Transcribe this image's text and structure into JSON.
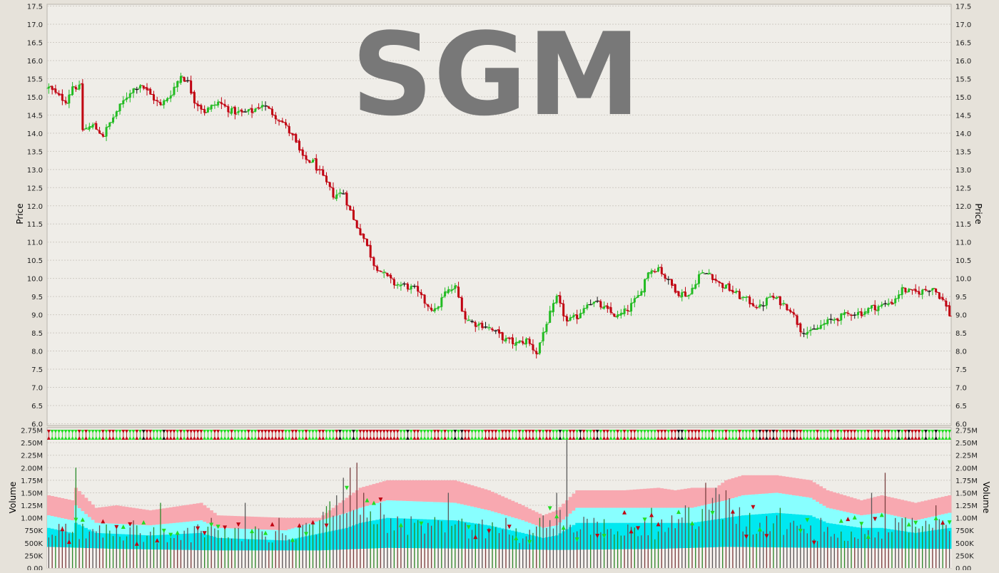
{
  "watermark": "SGM",
  "colors": {
    "up": "#22bb22",
    "down": "#c00010",
    "neutral": "#111111",
    "plot_bg": "#efede8",
    "band_outer": "#f8a8b0",
    "band_mid": "#88ffff",
    "band_inner": "#00e8f0",
    "vol_base": "#e88a90",
    "watermark": "#787878"
  },
  "chart_data": [
    {
      "type": "ohlc",
      "name": "price",
      "ylabel": "Price",
      "ylim": [
        5.95,
        17.55
      ],
      "ticks": [
        "6.0",
        "6.5",
        "7.0",
        "7.5",
        "8.0",
        "8.5",
        "9.0",
        "9.5",
        "10.0",
        "10.5",
        "11.0",
        "11.5",
        "12.0",
        "12.5",
        "13.0",
        "13.5",
        "14.0",
        "14.5",
        "15.0",
        "15.5",
        "16.0",
        "16.5",
        "17.0",
        "17.5"
      ],
      "grid": true,
      "anchors": [
        [
          0,
          15.25
        ],
        [
          3,
          15.0
        ],
        [
          5,
          14.9
        ],
        [
          7,
          15.3
        ],
        [
          9,
          15.25
        ],
        [
          10,
          14.1
        ],
        [
          13,
          14.2
        ],
        [
          16,
          13.95
        ],
        [
          20,
          14.6
        ],
        [
          24,
          15.15
        ],
        [
          27,
          15.35
        ],
        [
          30,
          15.05
        ],
        [
          33,
          14.75
        ],
        [
          36,
          15.1
        ],
        [
          39,
          15.6
        ],
        [
          41,
          15.4
        ],
        [
          43,
          14.9
        ],
        [
          46,
          14.6
        ],
        [
          50,
          14.85
        ],
        [
          54,
          14.6
        ],
        [
          57,
          14.55
        ],
        [
          60,
          14.6
        ],
        [
          63,
          14.8
        ],
        [
          66,
          14.55
        ],
        [
          69,
          14.3
        ],
        [
          72,
          13.9
        ],
        [
          75,
          13.3
        ],
        [
          78,
          13.2
        ],
        [
          81,
          12.75
        ],
        [
          84,
          12.3
        ],
        [
          87,
          12.35
        ],
        [
          90,
          11.6
        ],
        [
          93,
          11.1
        ],
        [
          96,
          10.4
        ],
        [
          99,
          10.1
        ],
        [
          102,
          9.85
        ],
        [
          105,
          9.8
        ],
        [
          108,
          9.7
        ],
        [
          111,
          9.35
        ],
        [
          114,
          9.1
        ],
        [
          117,
          9.6
        ],
        [
          120,
          9.75
        ],
        [
          123,
          8.9
        ],
        [
          126,
          8.75
        ],
        [
          129,
          8.7
        ],
        [
          132,
          8.5
        ],
        [
          135,
          8.3
        ],
        [
          138,
          8.2
        ],
        [
          141,
          8.3
        ],
        [
          144,
          7.95
        ],
        [
          147,
          8.8
        ],
        [
          150,
          9.45
        ],
        [
          153,
          8.8
        ],
        [
          156,
          8.95
        ],
        [
          159,
          9.35
        ],
        [
          162,
          9.3
        ],
        [
          165,
          9.1
        ],
        [
          168,
          8.95
        ],
        [
          171,
          9.15
        ],
        [
          174,
          9.5
        ],
        [
          177,
          10.2
        ],
        [
          180,
          10.3
        ],
        [
          183,
          9.9
        ],
        [
          186,
          9.6
        ],
        [
          189,
          9.55
        ],
        [
          192,
          10.1
        ],
        [
          195,
          10.15
        ],
        [
          198,
          9.85
        ],
        [
          201,
          9.7
        ],
        [
          204,
          9.5
        ],
        [
          207,
          9.35
        ],
        [
          210,
          9.2
        ],
        [
          213,
          9.5
        ],
        [
          216,
          9.35
        ],
        [
          219,
          9.15
        ],
        [
          222,
          8.6
        ],
        [
          225,
          8.5
        ],
        [
          228,
          8.7
        ],
        [
          231,
          8.85
        ],
        [
          234,
          8.95
        ],
        [
          237,
          9.05
        ],
        [
          240,
          9.05
        ],
        [
          243,
          9.2
        ],
        [
          246,
          9.25
        ],
        [
          249,
          9.35
        ],
        [
          252,
          9.7
        ],
        [
          255,
          9.6
        ],
        [
          258,
          9.65
        ],
        [
          261,
          9.75
        ],
        [
          264,
          9.4
        ],
        [
          266,
          9.0
        ]
      ]
    },
    {
      "type": "bar",
      "name": "volume",
      "ylabel": "Volume",
      "ylim": [
        0,
        2.8
      ],
      "ticks": [
        "0.00",
        "250K",
        "500K",
        "750K",
        "1.00M",
        "1.25M",
        "1.50M",
        "1.75M",
        "2.00M",
        "2.25M",
        "2.50M",
        "2.75M"
      ],
      "grid": true,
      "anchors": [
        [
          0,
          0.75
        ],
        [
          10,
          0.8
        ],
        [
          30,
          0.7
        ],
        [
          50,
          0.75
        ],
        [
          70,
          0.7
        ],
        [
          80,
          0.85
        ],
        [
          85,
          1.3
        ],
        [
          90,
          1.55
        ],
        [
          95,
          1.2
        ],
        [
          100,
          0.95
        ],
        [
          110,
          0.9
        ],
        [
          120,
          0.85
        ],
        [
          130,
          0.8
        ],
        [
          140,
          0.7
        ],
        [
          150,
          1.0
        ],
        [
          160,
          0.85
        ],
        [
          170,
          0.9
        ],
        [
          180,
          0.8
        ],
        [
          190,
          1.05
        ],
        [
          196,
          1.3
        ],
        [
          200,
          1.35
        ],
        [
          205,
          0.95
        ],
        [
          210,
          0.95
        ],
        [
          220,
          0.85
        ],
        [
          230,
          0.7
        ],
        [
          240,
          0.8
        ],
        [
          250,
          0.85
        ],
        [
          260,
          0.85
        ],
        [
          266,
          0.9
        ]
      ],
      "spikes": [
        [
          8,
          2.0
        ],
        [
          25,
          0.95
        ],
        [
          33,
          1.3
        ],
        [
          38,
          0.7
        ],
        [
          48,
          1.0
        ],
        [
          58,
          1.3
        ],
        [
          68,
          1.0
        ],
        [
          76,
          0.9
        ],
        [
          85,
          1.45
        ],
        [
          87,
          1.8
        ],
        [
          89,
          2.0
        ],
        [
          91,
          2.1
        ],
        [
          93,
          1.5
        ],
        [
          98,
          1.3
        ],
        [
          118,
          1.5
        ],
        [
          135,
          1.0
        ],
        [
          145,
          1.0
        ],
        [
          150,
          1.5
        ],
        [
          153,
          2.75
        ],
        [
          161,
          1.0
        ],
        [
          178,
          1.2
        ],
        [
          184,
          1.05
        ],
        [
          188,
          1.25
        ],
        [
          194,
          1.7
        ],
        [
          197,
          1.6
        ],
        [
          200,
          1.55
        ],
        [
          216,
          1.2
        ],
        [
          228,
          1.0
        ],
        [
          243,
          1.5
        ],
        [
          247,
          1.9
        ],
        [
          255,
          1.0
        ],
        [
          262,
          1.25
        ]
      ],
      "band_outer": [
        [
          0,
          1.45
        ],
        [
          7,
          1.35
        ],
        [
          8,
          1.6
        ],
        [
          14,
          1.2
        ],
        [
          20,
          1.25
        ],
        [
          30,
          1.15
        ],
        [
          45,
          1.3
        ],
        [
          50,
          1.05
        ],
        [
          70,
          1.0
        ],
        [
          80,
          1.0
        ],
        [
          88,
          1.4
        ],
        [
          92,
          1.6
        ],
        [
          100,
          1.75
        ],
        [
          110,
          1.75
        ],
        [
          120,
          1.75
        ],
        [
          130,
          1.55
        ],
        [
          140,
          1.25
        ],
        [
          146,
          1.05
        ],
        [
          150,
          1.15
        ],
        [
          156,
          1.55
        ],
        [
          170,
          1.55
        ],
        [
          180,
          1.6
        ],
        [
          185,
          1.55
        ],
        [
          190,
          1.6
        ],
        [
          197,
          1.6
        ],
        [
          200,
          1.75
        ],
        [
          205,
          1.85
        ],
        [
          215,
          1.85
        ],
        [
          225,
          1.75
        ],
        [
          230,
          1.55
        ],
        [
          240,
          1.35
        ],
        [
          246,
          1.45
        ],
        [
          256,
          1.3
        ],
        [
          266,
          1.45
        ]
      ],
      "band_mid": [
        [
          0,
          1.05
        ],
        [
          7,
          0.95
        ],
        [
          8,
          1.25
        ],
        [
          14,
          0.9
        ],
        [
          30,
          0.85
        ],
        [
          45,
          0.95
        ],
        [
          50,
          0.8
        ],
        [
          70,
          0.75
        ],
        [
          88,
          1.1
        ],
        [
          92,
          1.2
        ],
        [
          100,
          1.35
        ],
        [
          120,
          1.3
        ],
        [
          130,
          1.15
        ],
        [
          140,
          0.95
        ],
        [
          146,
          0.8
        ],
        [
          150,
          0.85
        ],
        [
          156,
          1.2
        ],
        [
          180,
          1.2
        ],
        [
          190,
          1.2
        ],
        [
          200,
          1.35
        ],
        [
          205,
          1.45
        ],
        [
          215,
          1.5
        ],
        [
          225,
          1.4
        ],
        [
          230,
          1.2
        ],
        [
          240,
          1.05
        ],
        [
          246,
          1.1
        ],
        [
          256,
          0.95
        ],
        [
          266,
          1.1
        ]
      ],
      "band_inner": [
        [
          0,
          0.8
        ],
        [
          7,
          0.7
        ],
        [
          8,
          0.9
        ],
        [
          14,
          0.7
        ],
        [
          30,
          0.65
        ],
        [
          45,
          0.7
        ],
        [
          50,
          0.6
        ],
        [
          70,
          0.55
        ],
        [
          88,
          0.8
        ],
        [
          92,
          0.9
        ],
        [
          100,
          1.0
        ],
        [
          120,
          0.95
        ],
        [
          130,
          0.85
        ],
        [
          140,
          0.7
        ],
        [
          146,
          0.6
        ],
        [
          150,
          0.65
        ],
        [
          156,
          0.9
        ],
        [
          180,
          0.9
        ],
        [
          190,
          0.9
        ],
        [
          200,
          1.0
        ],
        [
          205,
          1.05
        ],
        [
          215,
          1.1
        ],
        [
          225,
          1.05
        ],
        [
          230,
          0.9
        ],
        [
          240,
          0.8
        ],
        [
          246,
          0.8
        ],
        [
          256,
          0.7
        ],
        [
          266,
          0.8
        ]
      ],
      "base": [
        [
          0,
          0.42
        ],
        [
          20,
          0.38
        ],
        [
          50,
          0.35
        ],
        [
          80,
          0.35
        ],
        [
          100,
          0.4
        ],
        [
          130,
          0.38
        ],
        [
          150,
          0.36
        ],
        [
          180,
          0.38
        ],
        [
          200,
          0.42
        ],
        [
          230,
          0.4
        ],
        [
          266,
          0.38
        ]
      ]
    }
  ]
}
